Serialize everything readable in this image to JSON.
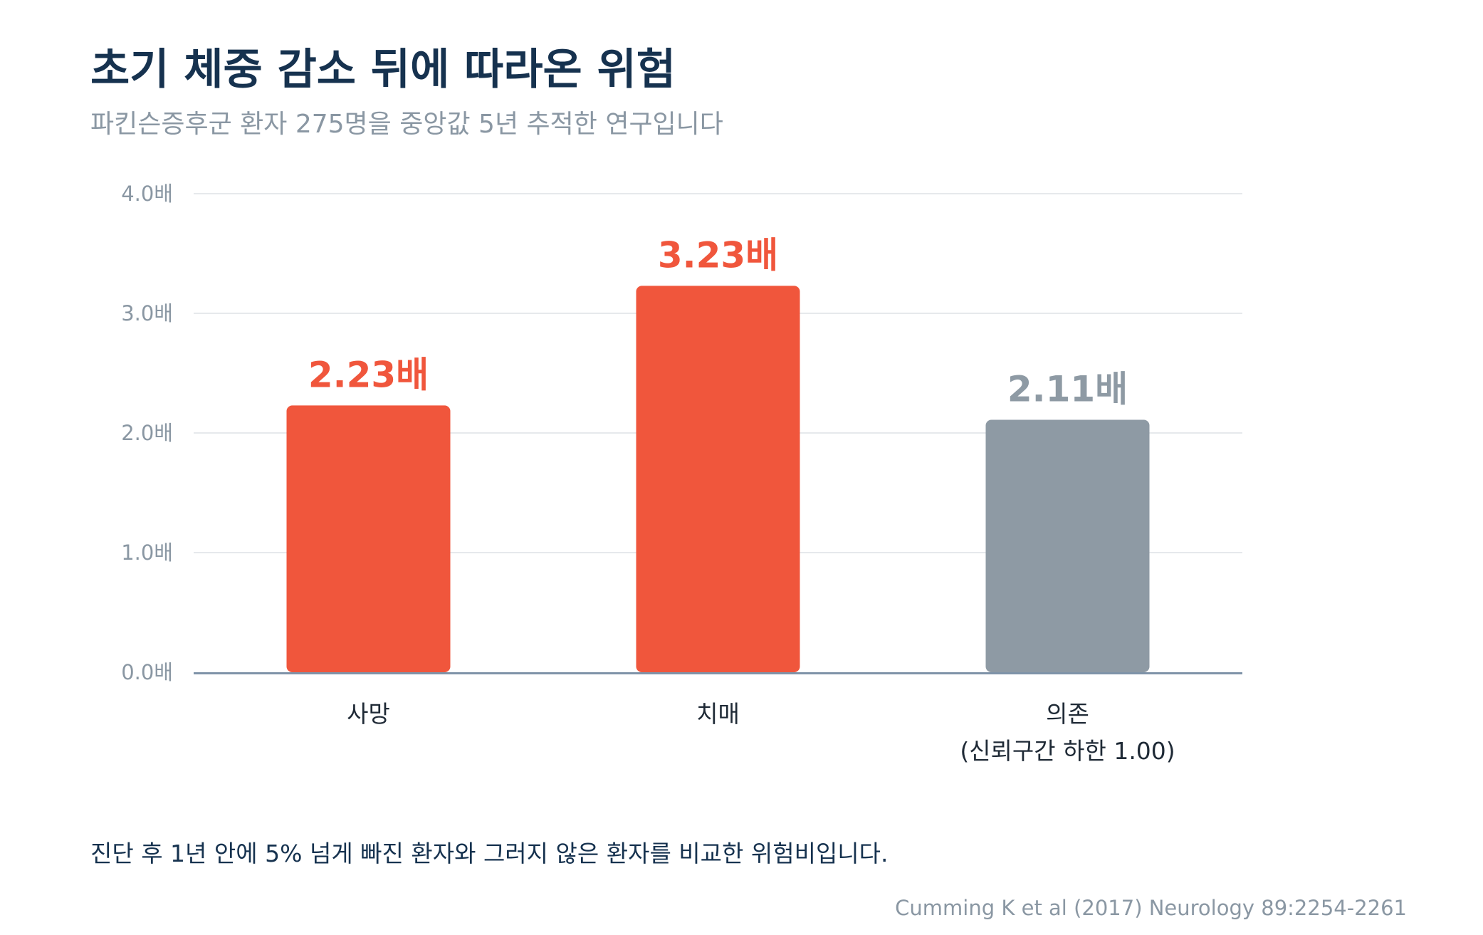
{
  "chart_data": {
    "type": "bar",
    "title": "초기 체중 감소 뒤에 따라온 위험",
    "subtitle": "파킨슨증후군 환자 275명을 중앙값 5년 추적한 연구입니다",
    "categories": [
      {
        "lines": [
          "사망"
        ]
      },
      {
        "lines": [
          "치매"
        ]
      },
      {
        "lines": [
          "의존",
          "(신뢰구간 하한 1.00)"
        ]
      }
    ],
    "values": [
      2.23,
      3.23,
      2.11
    ],
    "value_labels": [
      "2.23배",
      "3.23배",
      "2.11배"
    ],
    "bar_colors": [
      "#f0563c",
      "#f0563c",
      "#8e9aa4"
    ],
    "yticks": [
      {
        "value": 0,
        "label": "0.0배"
      },
      {
        "value": 1,
        "label": "1.0배"
      },
      {
        "value": 2,
        "label": "2.0배"
      },
      {
        "value": 3,
        "label": "3.0배"
      },
      {
        "value": 4,
        "label": "4.0배"
      }
    ],
    "ylim": [
      0,
      4
    ],
    "grid": true,
    "note": "진단 후 1년 안에 5% 넘게 빠진 환자와 그러지 않은 환자를 비교한 위험비입니다.",
    "source": "Cumming K et al (2017) Neurology 89:2254-2261"
  }
}
